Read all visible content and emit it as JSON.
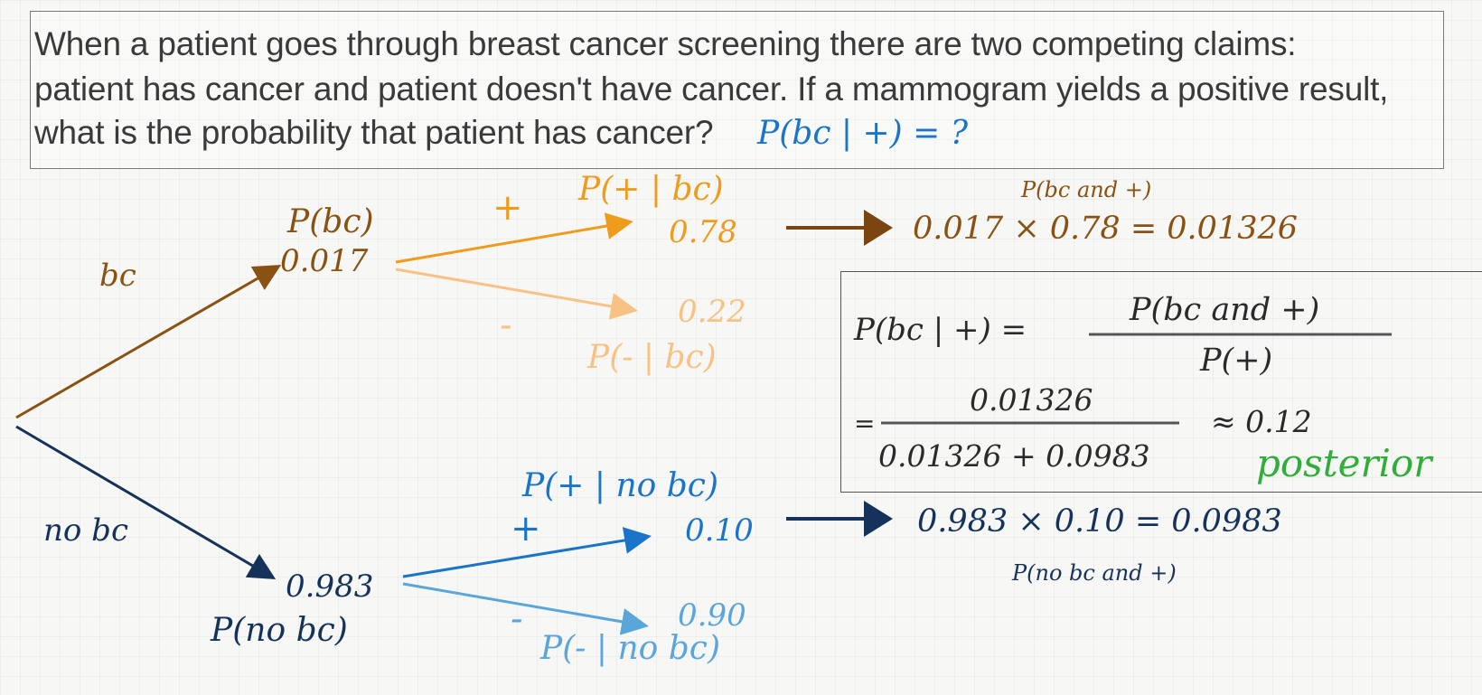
{
  "question": {
    "line1": "When a patient goes through breast cancer screening there are two competing claims:",
    "line2": "patient has cancer and patient doesn't have cancer. If a mammogram yields a positive result,",
    "line3": "what is the probability that patient has cancer?",
    "formula": "P(bc | +) = ?"
  },
  "tree": {
    "bc_branch_label": "bc",
    "nobc_branch_label": "no bc",
    "p_bc_label": "P(bc)",
    "p_bc_value": "0.017",
    "p_nobc_value": "0.983",
    "p_nobc_label": "P(no bc)",
    "bc_plus_sign": "+",
    "bc_plus_label": "P(+ | bc)",
    "bc_plus_value": "0.78",
    "bc_minus_sign": "-",
    "bc_minus_value": "0.22",
    "bc_minus_label": "P(- | bc)",
    "nobc_plus_label": "P(+ | no bc)",
    "nobc_plus_sign": "+",
    "nobc_plus_value": "0.10",
    "nobc_minus_sign": "-",
    "nobc_minus_value": "0.90",
    "nobc_minus_label": "P(- | no bc)"
  },
  "joint": {
    "bc_and_plus_label": "P(bc and +)",
    "bc_and_plus_calc": "0.017 × 0.78 = 0.01326",
    "nobc_and_plus_calc": "0.983 × 0.10 = 0.0983",
    "nobc_and_plus_label": "P(no bc and +)"
  },
  "bayes": {
    "lhs": "P(bc | +) =",
    "numerator": "P(bc and +)",
    "denominator": "P(+)",
    "eq": "=",
    "num2": "0.01326",
    "den2": "0.01326 + 0.0983",
    "approx": "≈ 0.12",
    "posterior": "posterior"
  },
  "colors": {
    "bc_branch": "#8a5212",
    "bc_plus": "#ef9c1d",
    "bc_minus": "#f7c283",
    "nobc_branch": "#14325a",
    "nobc_plus": "#1a74c8",
    "nobc_minus": "#5aa6da",
    "posterior": "#2fae3a"
  }
}
